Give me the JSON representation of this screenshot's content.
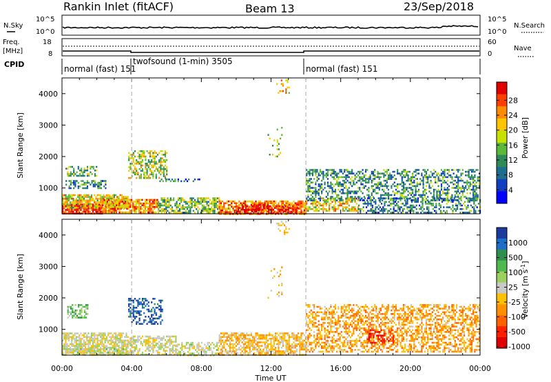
{
  "header": {
    "title": "Rankin Inlet (fitACF)",
    "beam": "Beam 13",
    "date": "23/Sep/2018"
  },
  "noise_panel": {
    "left_label": "N.Sky",
    "left_ticks": [
      "10^5",
      "10^0"
    ],
    "right_label": "N.Search",
    "right_ticks": [
      "10^5",
      "10^0"
    ]
  },
  "freq_panel": {
    "left_label_1": "Freq.",
    "left_label_2": "[MHz]",
    "left_ticks": [
      "18",
      "8"
    ],
    "right_label": "Nave",
    "right_ticks": [
      "60",
      "0"
    ]
  },
  "cpid_panel": {
    "label": "CPID",
    "segments": [
      {
        "name": "normal (fast) 151",
        "start_hour": 0,
        "end_hour": 4
      },
      {
        "name": "twofsound (1-min) 3505",
        "start_hour": 4,
        "end_hour": 14
      },
      {
        "name": "normal (fast) 151",
        "start_hour": 14,
        "end_hour": 24
      }
    ]
  },
  "power_colorbar": {
    "label": "Power [dB]",
    "ticks": [
      "28",
      "24",
      "20",
      "16",
      "12",
      "8",
      "4"
    ],
    "colors": [
      "#e00000",
      "#ff4000",
      "#ff8c00",
      "#ffc400",
      "#c8e000",
      "#5cb83a",
      "#2e8b57",
      "#1c6e8c",
      "#1040c0",
      "#0000ff"
    ]
  },
  "velocity_colorbar": {
    "label": "Velocity [m s^-1]",
    "ticks": [
      "1000",
      "500",
      "100",
      "25",
      "-25",
      "-100",
      "-500",
      "-1000"
    ],
    "colors": [
      "#1a3a9c",
      "#1e6ec8",
      "#2f8f4f",
      "#4fb84f",
      "#9ed060",
      "#c8c8c8",
      "#ffc000",
      "#ff9000",
      "#ff6000",
      "#ff2000",
      "#e00000"
    ]
  },
  "chart_data": [
    {
      "type": "heatmap",
      "title": "",
      "xlabel": "",
      "ylabel": "Slant Range [km]",
      "xlim": [
        0,
        24
      ],
      "ylim": [
        180,
        4500
      ],
      "yticks": [
        1000,
        2000,
        3000,
        4000
      ],
      "quantity": "Power [dB]",
      "color_range": [
        0,
        30
      ],
      "regions": [
        {
          "x0": 0.0,
          "x1": 2.3,
          "y0": 190,
          "y1": 500,
          "value": 28,
          "density": 0.85
        },
        {
          "x0": 0.0,
          "x1": 3.8,
          "y0": 400,
          "y1": 800,
          "value": 18,
          "density": 0.75
        },
        {
          "x0": 2.3,
          "x1": 5.5,
          "y0": 250,
          "y1": 650,
          "value": 22,
          "density": 0.8
        },
        {
          "x0": 5.5,
          "x1": 9.0,
          "y0": 200,
          "y1": 700,
          "value": 14,
          "density": 0.65
        },
        {
          "x0": 9.0,
          "x1": 14.0,
          "y0": 200,
          "y1": 600,
          "value": 22,
          "density": 0.75
        },
        {
          "x0": 10.0,
          "x1": 13.5,
          "y0": 200,
          "y1": 450,
          "value": 29,
          "density": 0.65
        },
        {
          "x0": 14.0,
          "x1": 17.0,
          "y0": 300,
          "y1": 700,
          "value": 18,
          "density": 0.55
        },
        {
          "x0": 14.0,
          "x1": 24.0,
          "y0": 600,
          "y1": 1600,
          "value": 10,
          "density": 0.45
        },
        {
          "x0": 17.0,
          "x1": 24.0,
          "y0": 200,
          "y1": 700,
          "value": 9,
          "density": 0.45
        },
        {
          "x0": 0.2,
          "x1": 2.0,
          "y0": 1400,
          "y1": 1700,
          "value": 14,
          "density": 0.55
        },
        {
          "x0": 0.2,
          "x1": 2.5,
          "y0": 1000,
          "y1": 1250,
          "value": 9,
          "density": 0.5
        },
        {
          "x0": 3.8,
          "x1": 6.0,
          "y0": 1300,
          "y1": 2200,
          "value": 16,
          "density": 0.5
        },
        {
          "x0": 5.5,
          "x1": 8.0,
          "y0": 1200,
          "y1": 1300,
          "value": 8,
          "density": 0.35
        },
        {
          "x0": 11.8,
          "x1": 12.6,
          "y0": 2000,
          "y1": 3000,
          "value": 14,
          "density": 0.08
        },
        {
          "x0": 12.3,
          "x1": 13.0,
          "y0": 4000,
          "y1": 4450,
          "value": 20,
          "density": 0.2
        }
      ]
    },
    {
      "type": "heatmap",
      "title": "",
      "xlabel": "Time UT",
      "ylabel": "Slant Range [km]",
      "xlim": [
        0,
        24
      ],
      "ylim": [
        180,
        4500
      ],
      "xticks": [
        "00:00",
        "04:00",
        "08:00",
        "12:00",
        "16:00",
        "20:00",
        "00:00"
      ],
      "yticks": [
        1000,
        2000,
        3000,
        4000
      ],
      "quantity": "Velocity [m s^-1]",
      "color_range": [
        -1000,
        1000
      ],
      "regions": [
        {
          "x0": 0.0,
          "x1": 3.8,
          "y0": 190,
          "y1": 900,
          "value": 0,
          "density": 0.7
        },
        {
          "x0": 0.0,
          "x1": 3.8,
          "y0": 190,
          "y1": 400,
          "value": 60,
          "density": 0.6
        },
        {
          "x0": 3.8,
          "x1": 6.5,
          "y0": 200,
          "y1": 800,
          "value": 0,
          "density": 0.55
        },
        {
          "x0": 6.5,
          "x1": 9.0,
          "y0": 200,
          "y1": 600,
          "value": 50,
          "density": 0.5
        },
        {
          "x0": 9.0,
          "x1": 14.0,
          "y0": 200,
          "y1": 900,
          "value": -200,
          "density": 0.65
        },
        {
          "x0": 14.0,
          "x1": 24.0,
          "y0": 300,
          "y1": 1800,
          "value": -300,
          "density": 0.5
        },
        {
          "x0": 17.5,
          "x1": 19.0,
          "y0": 600,
          "y1": 1000,
          "value": -700,
          "density": 0.5
        },
        {
          "x0": 0.3,
          "x1": 1.5,
          "y0": 1400,
          "y1": 1800,
          "value": 300,
          "density": 0.5
        },
        {
          "x0": 3.8,
          "x1": 5.8,
          "y0": 1200,
          "y1": 2000,
          "value": 800,
          "density": 0.45
        },
        {
          "x0": 11.8,
          "x1": 12.6,
          "y0": 2000,
          "y1": 3000,
          "value": -200,
          "density": 0.08
        },
        {
          "x0": 12.3,
          "x1": 13.0,
          "y0": 4000,
          "y1": 4450,
          "value": -150,
          "density": 0.2
        }
      ]
    }
  ]
}
